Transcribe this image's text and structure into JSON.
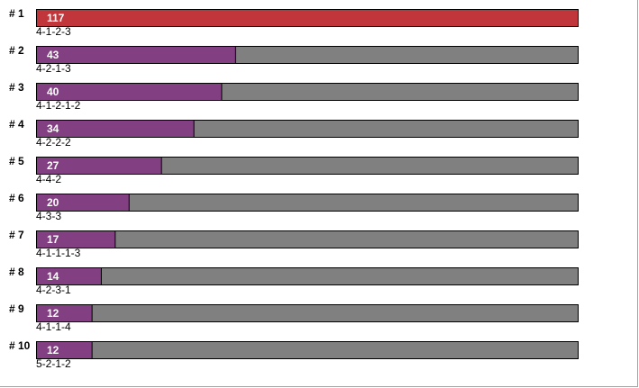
{
  "rows": [
    {
      "rank": "# 1",
      "value": 117,
      "label": "4-1-2-3"
    },
    {
      "rank": "# 2",
      "value": 43,
      "label": "4-2-1-3"
    },
    {
      "rank": "# 3",
      "value": 40,
      "label": "4-1-2-1-2"
    },
    {
      "rank": "# 4",
      "value": 34,
      "label": "4-2-2-2"
    },
    {
      "rank": "# 5",
      "value": 27,
      "label": "4-4-2"
    },
    {
      "rank": "# 6",
      "value": 20,
      "label": "4-3-3"
    },
    {
      "rank": "# 7",
      "value": 17,
      "label": "4-1-1-1-3"
    },
    {
      "rank": "# 8",
      "value": 14,
      "label": "4-2-3-1"
    },
    {
      "rank": "# 9",
      "value": 12,
      "label": "4-1-1-4"
    },
    {
      "rank": "# 10",
      "value": 12,
      "label": "5-2-1-2"
    }
  ],
  "colors": {
    "top": "#c1363b",
    "bar": "#823f82",
    "track": "#808080"
  }
}
